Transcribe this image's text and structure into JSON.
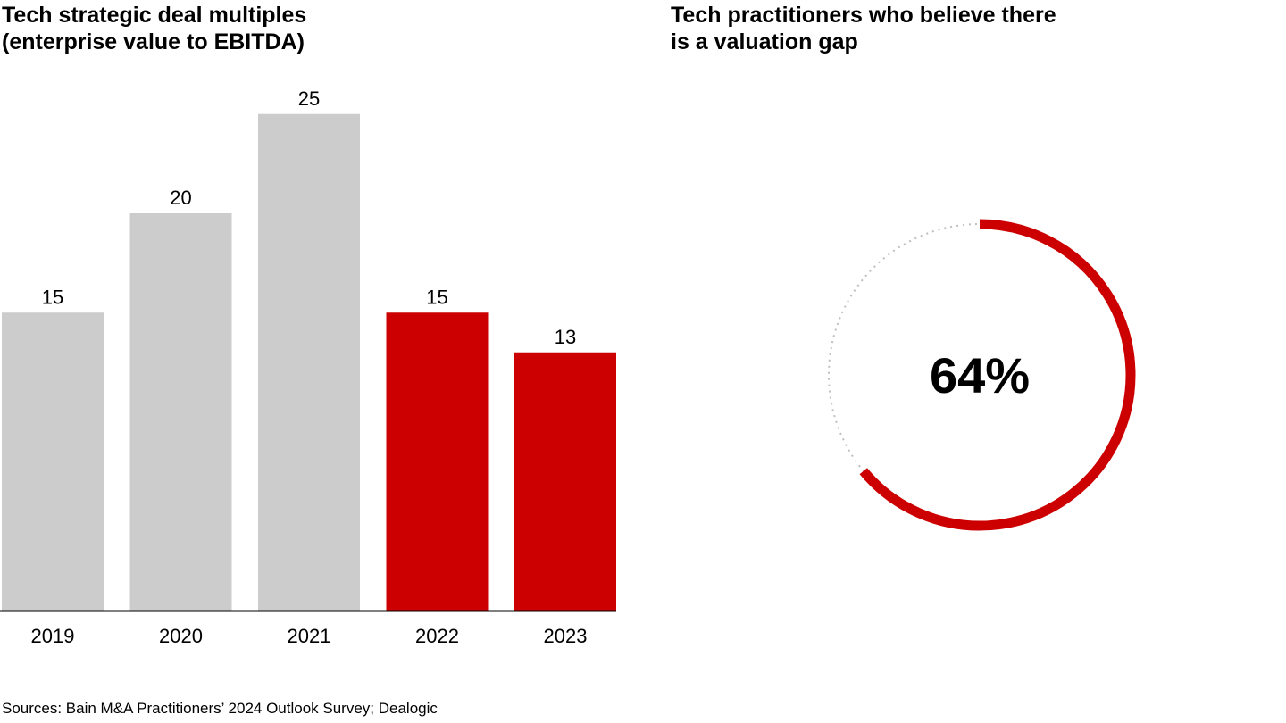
{
  "chart_data": [
    {
      "type": "bar",
      "title": "Tech strategic deal multiples (enterprise value to EBITDA)",
      "title_lines": [
        "Tech strategic deal multiples",
        "(enterprise value to EBITDA)"
      ],
      "categories": [
        "2019",
        "2020",
        "2021",
        "2022",
        "2023"
      ],
      "values": [
        15,
        20,
        25,
        15,
        13
      ],
      "colors": [
        "#cccccc",
        "#cccccc",
        "#cccccc",
        "#cc0000",
        "#cc0000"
      ],
      "ylim": [
        0,
        25
      ],
      "grid": false,
      "data_labels": true
    },
    {
      "type": "pie",
      "subtype": "donut",
      "title": "Tech practitioners who believe there is a valuation gap",
      "title_lines": [
        "Tech practitioners who believe there",
        "is a valuation gap"
      ],
      "value": 64,
      "label": "64%",
      "colors": {
        "filled": "#cc0000",
        "remainder": "#bfbfbf"
      }
    }
  ],
  "source": "Sources: Bain M&A Practitioners’ 2024 Outlook Survey; Dealogic"
}
